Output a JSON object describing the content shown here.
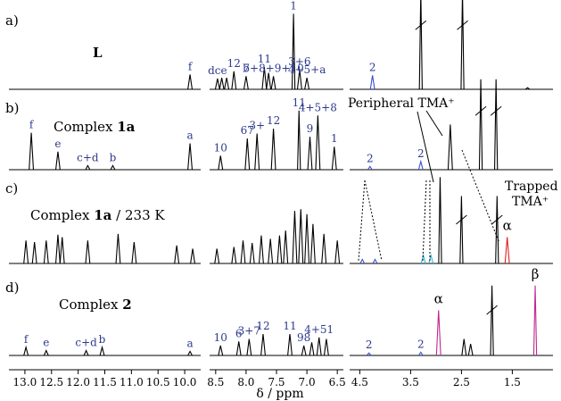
{
  "figure": {
    "axis_title": "δ / ppm",
    "panels": [
      {
        "letter": "a)",
        "title": "L",
        "title_bold": true
      },
      {
        "letter": "b)",
        "title": "Complex ",
        "title_bold_part": "1a"
      },
      {
        "letter": "c)",
        "title": "Complex ",
        "title_bold_part": "1a",
        "title_suffix": " / 233 K"
      },
      {
        "letter": "d)",
        "title": "Complex ",
        "title_bold_part": "2"
      }
    ],
    "annotations": {
      "peripheral": "Peripheral TMA⁺",
      "trapped_line1": "Trapped",
      "trapped_line2": "TMA⁺",
      "alpha": "α",
      "beta": "β"
    }
  },
  "chart_data": {
    "type": "line",
    "title": "",
    "xlabel": "δ / ppm",
    "x_reversed": true,
    "x_breaks": [
      [
        9.7,
        8.6
      ],
      [
        6.4,
        4.7
      ]
    ],
    "segments": [
      {
        "range": [
          13.3,
          9.7
        ],
        "ticks": [
          13.0,
          12.5,
          12.0,
          11.5,
          11.0,
          10.5,
          10.0
        ]
      },
      {
        "range": [
          8.6,
          6.4
        ],
        "ticks": [
          8.5,
          8.0,
          7.5,
          7.0,
          6.5
        ]
      },
      {
        "range": [
          4.7,
          0.7
        ],
        "ticks": [
          4.5,
          3.5,
          2.5,
          1.5
        ]
      }
    ],
    "tick_labels": [
      "13.0",
      "12.5",
      "12.0",
      "11.5",
      "11.0",
      "10.5",
      "10.0",
      "8.5",
      "8.0",
      "7.5",
      "7.0",
      "6.5",
      "4.5",
      "3.5",
      "2.5",
      "1.5"
    ],
    "series": [
      {
        "panel": "a)",
        "peaks": [
          {
            "x": 9.9,
            "h": 0.18,
            "label": "f"
          },
          {
            "x": 8.47,
            "h": 0.13,
            "label": "dce"
          },
          {
            "x": 8.4,
            "h": 0.14
          },
          {
            "x": 8.32,
            "h": 0.14
          },
          {
            "x": 8.2,
            "h": 0.22,
            "label": "12"
          },
          {
            "x": 8.0,
            "h": 0.16,
            "label": "b"
          },
          {
            "x": 7.7,
            "h": 0.27,
            "label": "11"
          },
          {
            "x": 7.63,
            "h": 0.2
          },
          {
            "x": 7.55,
            "h": 0.16,
            "label": "7+8+9+10"
          },
          {
            "x": 7.22,
            "h": 0.92,
            "label": "1"
          },
          {
            "x": 7.12,
            "h": 0.24,
            "label": "3+6"
          },
          {
            "x": 7.0,
            "h": 0.14,
            "label": "4+5+a"
          },
          {
            "x": 4.25,
            "h": 0.17,
            "label": "2"
          },
          {
            "x": 3.3,
            "h": 1.2,
            "broken": true
          },
          {
            "x": 2.48,
            "h": 1.2,
            "broken": true
          },
          {
            "x": 1.2,
            "h": 0.02
          }
        ]
      },
      {
        "panel": "b)",
        "peaks": [
          {
            "x": 12.88,
            "h": 0.45,
            "label": "f"
          },
          {
            "x": 12.38,
            "h": 0.22,
            "label": "e"
          },
          {
            "x": 11.82,
            "h": 0.05,
            "label": "c+d"
          },
          {
            "x": 11.35,
            "h": 0.05,
            "label": "b"
          },
          {
            "x": 9.9,
            "h": 0.32,
            "label": "a"
          },
          {
            "x": 8.42,
            "h": 0.17,
            "label": "10"
          },
          {
            "x": 7.98,
            "h": 0.38,
            "label": "67"
          },
          {
            "x": 7.82,
            "h": 0.44,
            "label": "3+"
          },
          {
            "x": 7.55,
            "h": 0.5,
            "label": "12"
          },
          {
            "x": 7.13,
            "h": 0.72,
            "label": "11"
          },
          {
            "x": 6.95,
            "h": 0.4,
            "label": "9"
          },
          {
            "x": 6.82,
            "h": 0.66,
            "label": "4+5+8"
          },
          {
            "x": 6.55,
            "h": 0.28,
            "label": "1"
          },
          {
            "x": 4.3,
            "h": 0.04,
            "label": "2"
          },
          {
            "x": 3.3,
            "h": 0.1,
            "label": "2"
          },
          {
            "x": 2.72,
            "h": 0.55,
            "label": "Peripheral TMA⁺"
          },
          {
            "x": 2.12,
            "h": 1.1,
            "broken": true
          },
          {
            "x": 1.82,
            "h": 1.1,
            "broken": true
          }
        ]
      },
      {
        "panel": "c)",
        "peaks": [
          {
            "x": 12.98,
            "h": 0.28
          },
          {
            "x": 12.82,
            "h": 0.26
          },
          {
            "x": 12.6,
            "h": 0.28
          },
          {
            "x": 12.38,
            "h": 0.35
          },
          {
            "x": 12.3,
            "h": 0.32
          },
          {
            "x": 11.82,
            "h": 0.28
          },
          {
            "x": 11.25,
            "h": 0.36
          },
          {
            "x": 10.95,
            "h": 0.26
          },
          {
            "x": 10.15,
            "h": 0.22
          },
          {
            "x": 9.85,
            "h": 0.18
          },
          {
            "x": 8.48,
            "h": 0.18
          },
          {
            "x": 8.2,
            "h": 0.2
          },
          {
            "x": 8.05,
            "h": 0.28
          },
          {
            "x": 7.9,
            "h": 0.25
          },
          {
            "x": 7.75,
            "h": 0.34
          },
          {
            "x": 7.6,
            "h": 0.3
          },
          {
            "x": 7.45,
            "h": 0.34
          },
          {
            "x": 7.35,
            "h": 0.4
          },
          {
            "x": 7.2,
            "h": 0.64
          },
          {
            "x": 7.1,
            "h": 0.66
          },
          {
            "x": 7.0,
            "h": 0.6
          },
          {
            "x": 6.9,
            "h": 0.48
          },
          {
            "x": 6.72,
            "h": 0.36
          },
          {
            "x": 6.5,
            "h": 0.28
          },
          {
            "x": 4.45,
            "h": 0.05
          },
          {
            "x": 4.2,
            "h": 0.05
          },
          {
            "x": 3.25,
            "h": 0.1
          },
          {
            "x": 3.1,
            "h": 0.1
          },
          {
            "x": 2.92,
            "h": 1.05
          },
          {
            "x": 2.5,
            "h": 0.82,
            "broken": true
          },
          {
            "x": 1.8,
            "h": 0.82,
            "broken": true
          },
          {
            "x": 1.6,
            "h": 0.32,
            "label": "α"
          }
        ]
      },
      {
        "panel": "d)",
        "peaks": [
          {
            "x": 12.98,
            "h": 0.1,
            "label": "f"
          },
          {
            "x": 12.6,
            "h": 0.06,
            "label": "e"
          },
          {
            "x": 11.85,
            "h": 0.06,
            "label": "c+d"
          },
          {
            "x": 11.55,
            "h": 0.1,
            "label": "b"
          },
          {
            "x": 9.9,
            "h": 0.05,
            "label": "a"
          },
          {
            "x": 8.42,
            "h": 0.12,
            "label": "10"
          },
          {
            "x": 8.12,
            "h": 0.17,
            "label": "6"
          },
          {
            "x": 7.95,
            "h": 0.2,
            "label": "3+7"
          },
          {
            "x": 7.72,
            "h": 0.26,
            "label": "12"
          },
          {
            "x": 7.28,
            "h": 0.26,
            "label": "11"
          },
          {
            "x": 7.05,
            "h": 0.12,
            "label": "98"
          },
          {
            "x": 6.92,
            "h": 0.16
          },
          {
            "x": 6.8,
            "h": 0.22,
            "label": "4+51"
          },
          {
            "x": 6.68,
            "h": 0.2
          },
          {
            "x": 4.32,
            "h": 0.03,
            "label": "2"
          },
          {
            "x": 3.3,
            "h": 0.04,
            "label": "2"
          },
          {
            "x": 2.95,
            "h": 0.55,
            "label": "α"
          },
          {
            "x": 2.45,
            "h": 0.2
          },
          {
            "x": 2.32,
            "h": 0.14
          },
          {
            "x": 1.9,
            "h": 0.85,
            "broken": true
          },
          {
            "x": 1.05,
            "h": 0.85,
            "label": "β"
          }
        ]
      }
    ]
  }
}
